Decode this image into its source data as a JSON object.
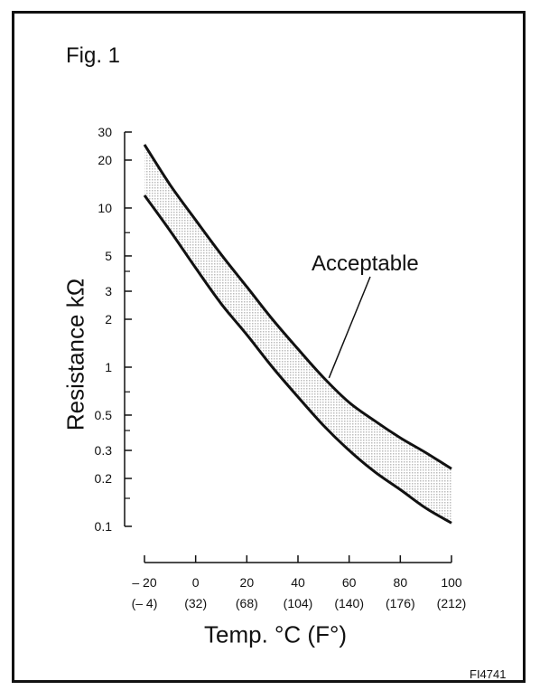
{
  "figure_label": "Fig. 1",
  "figure_code": "FI4741",
  "chart_data": {
    "type": "area",
    "title": "",
    "xlabel": "Temp. °C (F°)",
    "ylabel": "Resistance kΩ",
    "y_scale": "log",
    "grid": false,
    "x_ticks": [
      {
        "value": -20,
        "label": "– 20",
        "sublabel": "(– 4)"
      },
      {
        "value": 0,
        "label": "0",
        "sublabel": "(32)"
      },
      {
        "value": 20,
        "label": "20",
        "sublabel": "(68)"
      },
      {
        "value": 40,
        "label": "40",
        "sublabel": "(104)"
      },
      {
        "value": 60,
        "label": "60",
        "sublabel": "(140)"
      },
      {
        "value": 80,
        "label": "80",
        "sublabel": "(176)"
      },
      {
        "value": 100,
        "label": "100",
        "sublabel": "(212)"
      }
    ],
    "y_ticks": [
      {
        "value": 30,
        "label": "30"
      },
      {
        "value": 20,
        "label": "20"
      },
      {
        "value": 10,
        "label": "10"
      },
      {
        "value": 5,
        "label": "5"
      },
      {
        "value": 3,
        "label": "3"
      },
      {
        "value": 2,
        "label": "2"
      },
      {
        "value": 1,
        "label": "1"
      },
      {
        "value": 0.5,
        "label": "0.5"
      },
      {
        "value": 0.3,
        "label": "0.3"
      },
      {
        "value": 0.2,
        "label": "0.2"
      },
      {
        "value": 0.1,
        "label": "0.1"
      }
    ],
    "y_minor_ticks": [
      7,
      4,
      0.7,
      0.4,
      0.15
    ],
    "xlim": [
      -20,
      100
    ],
    "ylim": [
      0.1,
      30
    ],
    "x": [
      -20,
      -10,
      0,
      10,
      20,
      30,
      40,
      50,
      60,
      70,
      80,
      90,
      100
    ],
    "series": [
      {
        "values": [
          25,
          14,
          8.4,
          5.1,
          3.2,
          2.0,
          1.3,
          0.86,
          0.6,
          0.46,
          0.36,
          0.29,
          0.23
        ]
      },
      {
        "values": [
          12,
          7.2,
          4.2,
          2.5,
          1.6,
          1.0,
          0.65,
          0.43,
          0.3,
          0.22,
          0.17,
          0.13,
          0.105
        ]
      }
    ],
    "band_label": "Acceptable",
    "annotation": {
      "text": "Acceptable",
      "points_to": {
        "x": 50,
        "y": 0.95
      }
    },
    "colors": {
      "line": "#111111",
      "band_fill": "#bdbdbd"
    }
  }
}
